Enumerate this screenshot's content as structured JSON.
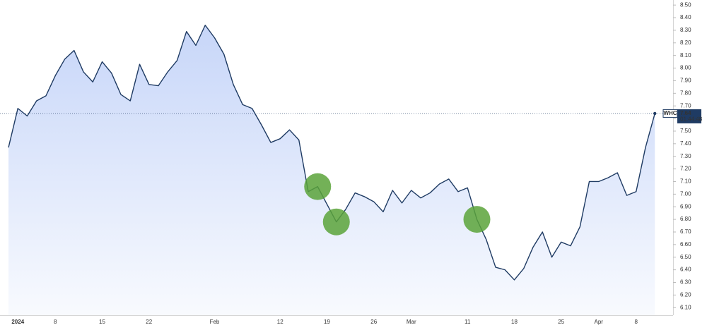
{
  "chart_data": {
    "type": "area",
    "symbol": "WHC",
    "countdown": "01:44:48",
    "color": "#1f3b63",
    "fill_color": "#a9c0f5",
    "highlight_color": "#5aa33a",
    "highlighted_points": [
      33,
      35,
      50
    ],
    "categories": [
      null,
      "2024",
      null,
      null,
      null,
      "8",
      null,
      null,
      null,
      null,
      "15",
      null,
      null,
      null,
      null,
      "22",
      null,
      null,
      null,
      null,
      null,
      null,
      "Feb",
      null,
      null,
      null,
      null,
      null,
      null,
      "12",
      null,
      null,
      null,
      null,
      "19",
      null,
      null,
      null,
      null,
      "26",
      null,
      null,
      null,
      "Mar",
      null,
      null,
      null,
      null,
      null,
      "11",
      null,
      null,
      null,
      null,
      "18",
      null,
      null,
      null,
      null,
      "25",
      null,
      null,
      null,
      "Apr",
      null,
      null,
      null,
      "8",
      null,
      null
    ],
    "series": [
      {
        "name": "WHC",
        "values": [
          7.37,
          7.68,
          7.62,
          7.74,
          7.78,
          7.94,
          8.07,
          8.14,
          7.97,
          7.89,
          8.05,
          7.96,
          7.79,
          7.74,
          8.03,
          7.87,
          7.86,
          7.97,
          8.06,
          8.29,
          8.18,
          8.34,
          8.24,
          8.11,
          7.87,
          7.71,
          7.68,
          7.55,
          7.41,
          7.44,
          7.51,
          7.43,
          7.02,
          7.06,
          6.92,
          6.78,
          6.88,
          7.01,
          6.98,
          6.94,
          6.86,
          7.03,
          6.93,
          7.03,
          6.97,
          7.01,
          7.08,
          7.12,
          7.02,
          7.05,
          6.8,
          6.64,
          6.42,
          6.4,
          6.32,
          6.41,
          6.58,
          6.7,
          6.5,
          6.62,
          6.59,
          6.74,
          7.1,
          7.1,
          7.13,
          7.17,
          6.99,
          7.02,
          7.37,
          7.64
        ]
      }
    ],
    "ylim": [
      6.04,
      8.54
    ],
    "yticks": [
      {
        "value": 6.1,
        "label": "6.10"
      },
      {
        "value": 6.2,
        "label": "6.20"
      },
      {
        "value": 6.3,
        "label": "6.30"
      },
      {
        "value": 6.4,
        "label": "6.40"
      },
      {
        "value": 6.5,
        "label": "6.50"
      },
      {
        "value": 6.6,
        "label": "6.60"
      },
      {
        "value": 6.7,
        "label": "6.70"
      },
      {
        "value": 6.8,
        "label": "6.80"
      },
      {
        "value": 6.9,
        "label": "6.90"
      },
      {
        "value": 7.0,
        "label": "7.00"
      },
      {
        "value": 7.1,
        "label": "7.10"
      },
      {
        "value": 7.2,
        "label": "7.20"
      },
      {
        "value": 7.3,
        "label": "7.30"
      },
      {
        "value": 7.4,
        "label": "7.40"
      },
      {
        "value": 7.5,
        "label": "7.50"
      },
      {
        "value": 7.6,
        "label": "7.60"
      },
      {
        "value": 7.7,
        "label": "7.70"
      },
      {
        "value": 7.8,
        "label": "7.80"
      },
      {
        "value": 7.9,
        "label": "7.90"
      },
      {
        "value": 8.0,
        "label": "8.00"
      },
      {
        "value": 8.1,
        "label": "8.10"
      },
      {
        "value": 8.2,
        "label": "8.20"
      },
      {
        "value": 8.3,
        "label": "8.30"
      },
      {
        "value": 8.4,
        "label": "8.40"
      },
      {
        "value": 8.5,
        "label": "8.50"
      }
    ]
  }
}
